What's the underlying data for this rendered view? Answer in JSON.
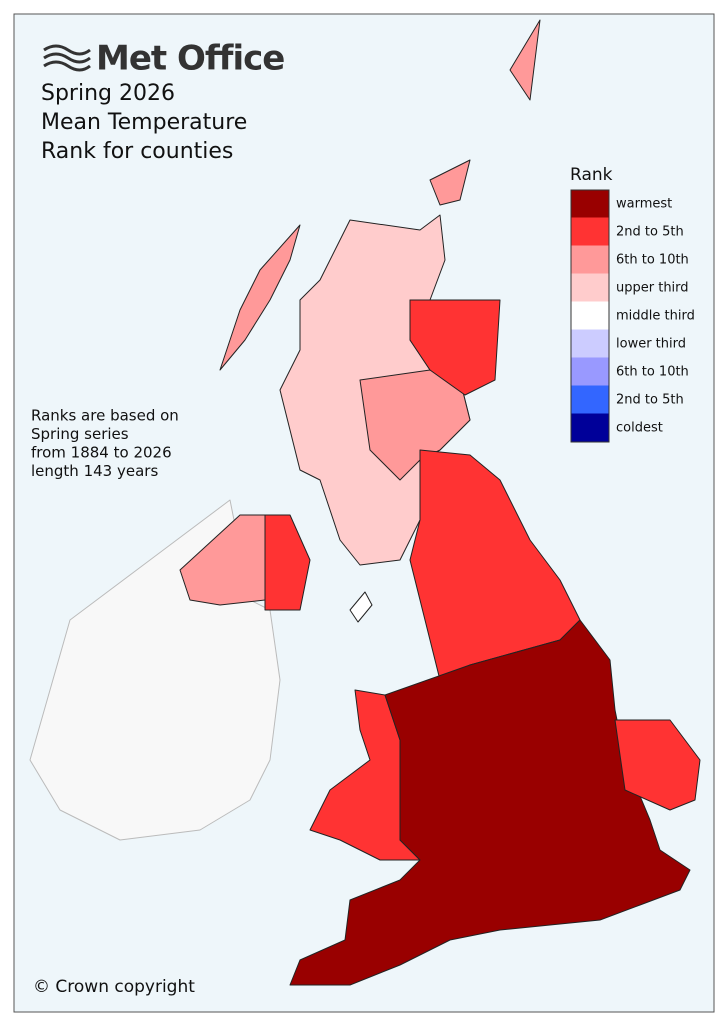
{
  "header": {
    "brand": "Met Office",
    "title_lines": [
      "Spring 2026",
      "Mean Temperature",
      "Rank for counties"
    ]
  },
  "note_lines": [
    "Ranks are based on",
    "Spring series",
    "from 1884 to 2026",
    "length 143 years"
  ],
  "legend": {
    "title": "Rank",
    "items": [
      {
        "label": "warmest",
        "color": "#990000"
      },
      {
        "label": "2nd to 5th",
        "color": "#ff3333"
      },
      {
        "label": "6th to 10th",
        "color": "#ff9999"
      },
      {
        "label": "upper third",
        "color": "#ffcccc"
      },
      {
        "label": "middle third",
        "color": "#ffffff"
      },
      {
        "label": "lower third",
        "color": "#ccccff"
      },
      {
        "label": "6th to 10th",
        "color": "#9999ff"
      },
      {
        "label": "2nd to 5th",
        "color": "#3366ff"
      },
      {
        "label": "coldest",
        "color": "#000099"
      }
    ]
  },
  "copyright": "© Crown copyright"
}
